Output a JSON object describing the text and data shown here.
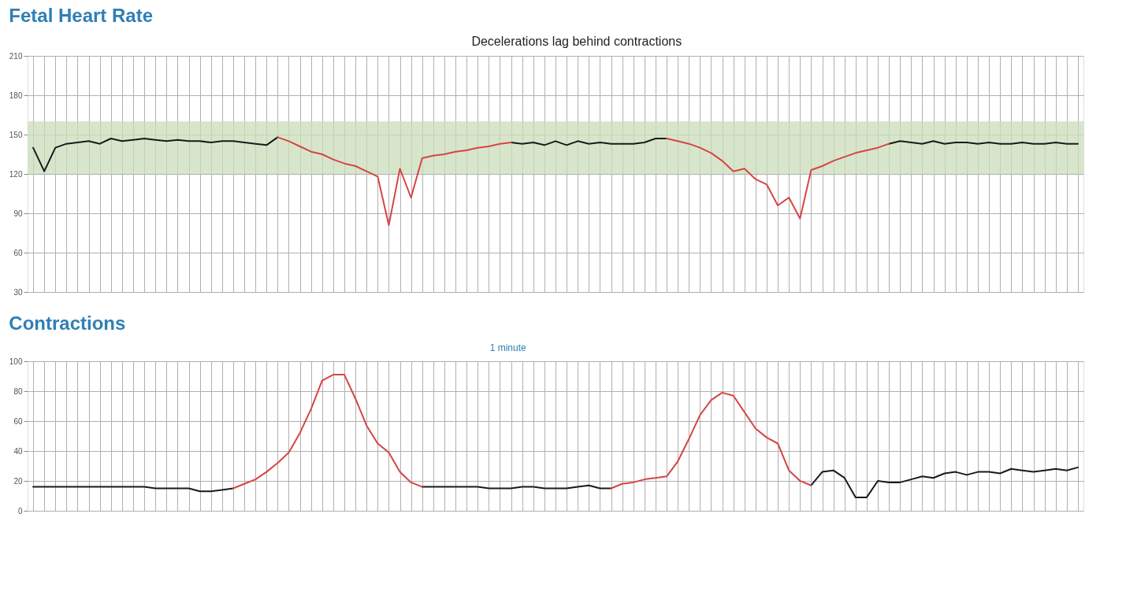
{
  "chart_data": [
    {
      "type": "line",
      "title": "Fetal Heart Rate",
      "annotations": [
        "Decelerations lag behind contractions"
      ],
      "categories": [
        null,
        null,
        null,
        null,
        null,
        null,
        null,
        null,
        null,
        null,
        null,
        null,
        null,
        null,
        null,
        null,
        null,
        null,
        null,
        null,
        null,
        null,
        null,
        null,
        null,
        null,
        null,
        null,
        null,
        null,
        null,
        null,
        null,
        null,
        null,
        null,
        null,
        null,
        null,
        null,
        null,
        null,
        null,
        null,
        null,
        null,
        null,
        null,
        null,
        null,
        null,
        null,
        null,
        null,
        null,
        null,
        null,
        null,
        null,
        null,
        null,
        null,
        null,
        null,
        null,
        null,
        null,
        null,
        null,
        null,
        null,
        null,
        null,
        null,
        null,
        null,
        null,
        null,
        null,
        null,
        null,
        null,
        null,
        null,
        null,
        null,
        null,
        null,
        null,
        null,
        null,
        null,
        null,
        null,
        null
      ],
      "series": [
        {
          "color": "#1a1a1a",
          "values": [
            140,
            122,
            140,
            143,
            144,
            145,
            143,
            147,
            145,
            146,
            147,
            146,
            145,
            146,
            145,
            145,
            144,
            145,
            145,
            144,
            143,
            142,
            148,
            null,
            null,
            null,
            null,
            null,
            null,
            null,
            null,
            null,
            null,
            null,
            null,
            null,
            null,
            null,
            null,
            null,
            null,
            null,
            null,
            144,
            143,
            144,
            142,
            145,
            142,
            145,
            143,
            144,
            143,
            143,
            143,
            144,
            147,
            147,
            null,
            null,
            null,
            null,
            null,
            null,
            null,
            null,
            null,
            null,
            null,
            null,
            null,
            null,
            null,
            null,
            null,
            null,
            null,
            143,
            145,
            144,
            143,
            145,
            143,
            144,
            144,
            143,
            144,
            143,
            143,
            144,
            143,
            143,
            144,
            143,
            143
          ]
        },
        {
          "color": "#d64545",
          "values": [
            null,
            null,
            null,
            null,
            null,
            null,
            null,
            null,
            null,
            null,
            null,
            null,
            null,
            null,
            null,
            null,
            null,
            null,
            null,
            null,
            null,
            null,
            148,
            145,
            141,
            137,
            135,
            131,
            128,
            126,
            122,
            118,
            81,
            124,
            102,
            132,
            134,
            135,
            137,
            138,
            140,
            141,
            143,
            144,
            null,
            null,
            null,
            null,
            null,
            null,
            null,
            null,
            null,
            null,
            null,
            null,
            null,
            147,
            145,
            143,
            140,
            136,
            130,
            122,
            124,
            116,
            112,
            96,
            102,
            86,
            123,
            126,
            130,
            133,
            136,
            138,
            140,
            143,
            null,
            null,
            null,
            null,
            null,
            null,
            null,
            null,
            null,
            null,
            null,
            null,
            null,
            null,
            null,
            null,
            null
          ]
        }
      ],
      "ylim": [
        30,
        210
      ],
      "yticks": [
        30,
        60,
        90,
        120,
        150,
        180,
        210
      ],
      "bands": [
        {
          "axis": "y",
          "from": 120,
          "to": 160,
          "color": "#c9ddb9"
        }
      ],
      "grid": true,
      "tick_labels": "y",
      "legend": false,
      "line_style": "solid",
      "marker": "none"
    },
    {
      "type": "line",
      "title": "Contractions",
      "annotations": [
        "1 minute"
      ],
      "categories": [
        null,
        null,
        null,
        null,
        null,
        null,
        null,
        null,
        null,
        null,
        null,
        null,
        null,
        null,
        null,
        null,
        null,
        null,
        null,
        null,
        null,
        null,
        null,
        null,
        null,
        null,
        null,
        null,
        null,
        null,
        null,
        null,
        null,
        null,
        null,
        null,
        null,
        null,
        null,
        null,
        null,
        null,
        null,
        null,
        null,
        null,
        null,
        null,
        null,
        null,
        null,
        null,
        null,
        null,
        null,
        null,
        null,
        null,
        null,
        null,
        null,
        null,
        null,
        null,
        null,
        null,
        null,
        null,
        null,
        null,
        null,
        null,
        null,
        null,
        null,
        null,
        null,
        null,
        null,
        null,
        null,
        null,
        null,
        null,
        null,
        null,
        null,
        null,
        null,
        null,
        null,
        null,
        null,
        null,
        null
      ],
      "series": [
        {
          "color": "#1a1a1a",
          "values": [
            16,
            16,
            16,
            16,
            16,
            16,
            16,
            16,
            16,
            16,
            16,
            15,
            15,
            15,
            15,
            13,
            13,
            14,
            15,
            null,
            null,
            null,
            null,
            null,
            null,
            null,
            null,
            null,
            null,
            null,
            null,
            null,
            null,
            null,
            null,
            16,
            16,
            16,
            16,
            16,
            16,
            15,
            15,
            15,
            16,
            16,
            15,
            15,
            15,
            16,
            17,
            15,
            15,
            null,
            null,
            null,
            null,
            null,
            null,
            null,
            null,
            null,
            null,
            null,
            null,
            null,
            null,
            null,
            null,
            null,
            17,
            26,
            27,
            22,
            9,
            9,
            20,
            19,
            19,
            21,
            23,
            22,
            25,
            26,
            24,
            26,
            26,
            25,
            28,
            27,
            26,
            27,
            28,
            27,
            29
          ]
        },
        {
          "color": "#d64545",
          "values": [
            null,
            null,
            null,
            null,
            null,
            null,
            null,
            null,
            null,
            null,
            null,
            null,
            null,
            null,
            null,
            null,
            null,
            null,
            15,
            18,
            21,
            26,
            32,
            39,
            52,
            68,
            87,
            91,
            91,
            75,
            57,
            45,
            39,
            26,
            19,
            16,
            null,
            null,
            null,
            null,
            null,
            null,
            null,
            null,
            null,
            null,
            null,
            null,
            null,
            null,
            null,
            null,
            15,
            18,
            19,
            21,
            22,
            23,
            33,
            48,
            64,
            74,
            79,
            77,
            66,
            55,
            49,
            45,
            27,
            20,
            17,
            null,
            null,
            null,
            null,
            null,
            null,
            null,
            null,
            null,
            null,
            null,
            null,
            null,
            null,
            null,
            null,
            null,
            null,
            null,
            null,
            null,
            null,
            null,
            null
          ]
        }
      ],
      "ylim": [
        0,
        100
      ],
      "yticks": [
        0,
        20,
        40,
        60,
        80,
        100
      ],
      "grid": true,
      "tick_labels": "y",
      "legend": false,
      "line_style": "solid",
      "marker": "none"
    }
  ]
}
